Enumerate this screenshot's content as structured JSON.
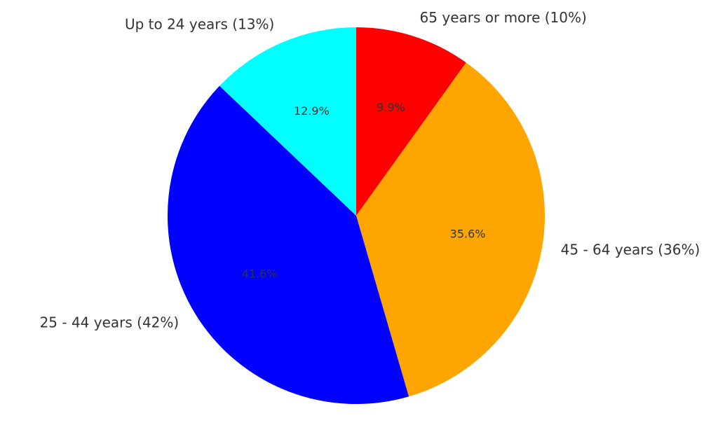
{
  "chart_data": {
    "type": "pie",
    "categories": [
      "65 years or more (10%)",
      "45 - 64 years (36%)",
      "25 - 44 years (42%)",
      "Up to 24 years (13%)"
    ],
    "values": [
      9.9,
      35.6,
      41.6,
      12.9
    ],
    "value_labels": [
      "9.9%",
      "35.6%",
      "41.6%",
      "12.9%"
    ],
    "colors": [
      "#ff0000",
      "#ffa500",
      "#0000ff",
      "#00ffff"
    ]
  }
}
